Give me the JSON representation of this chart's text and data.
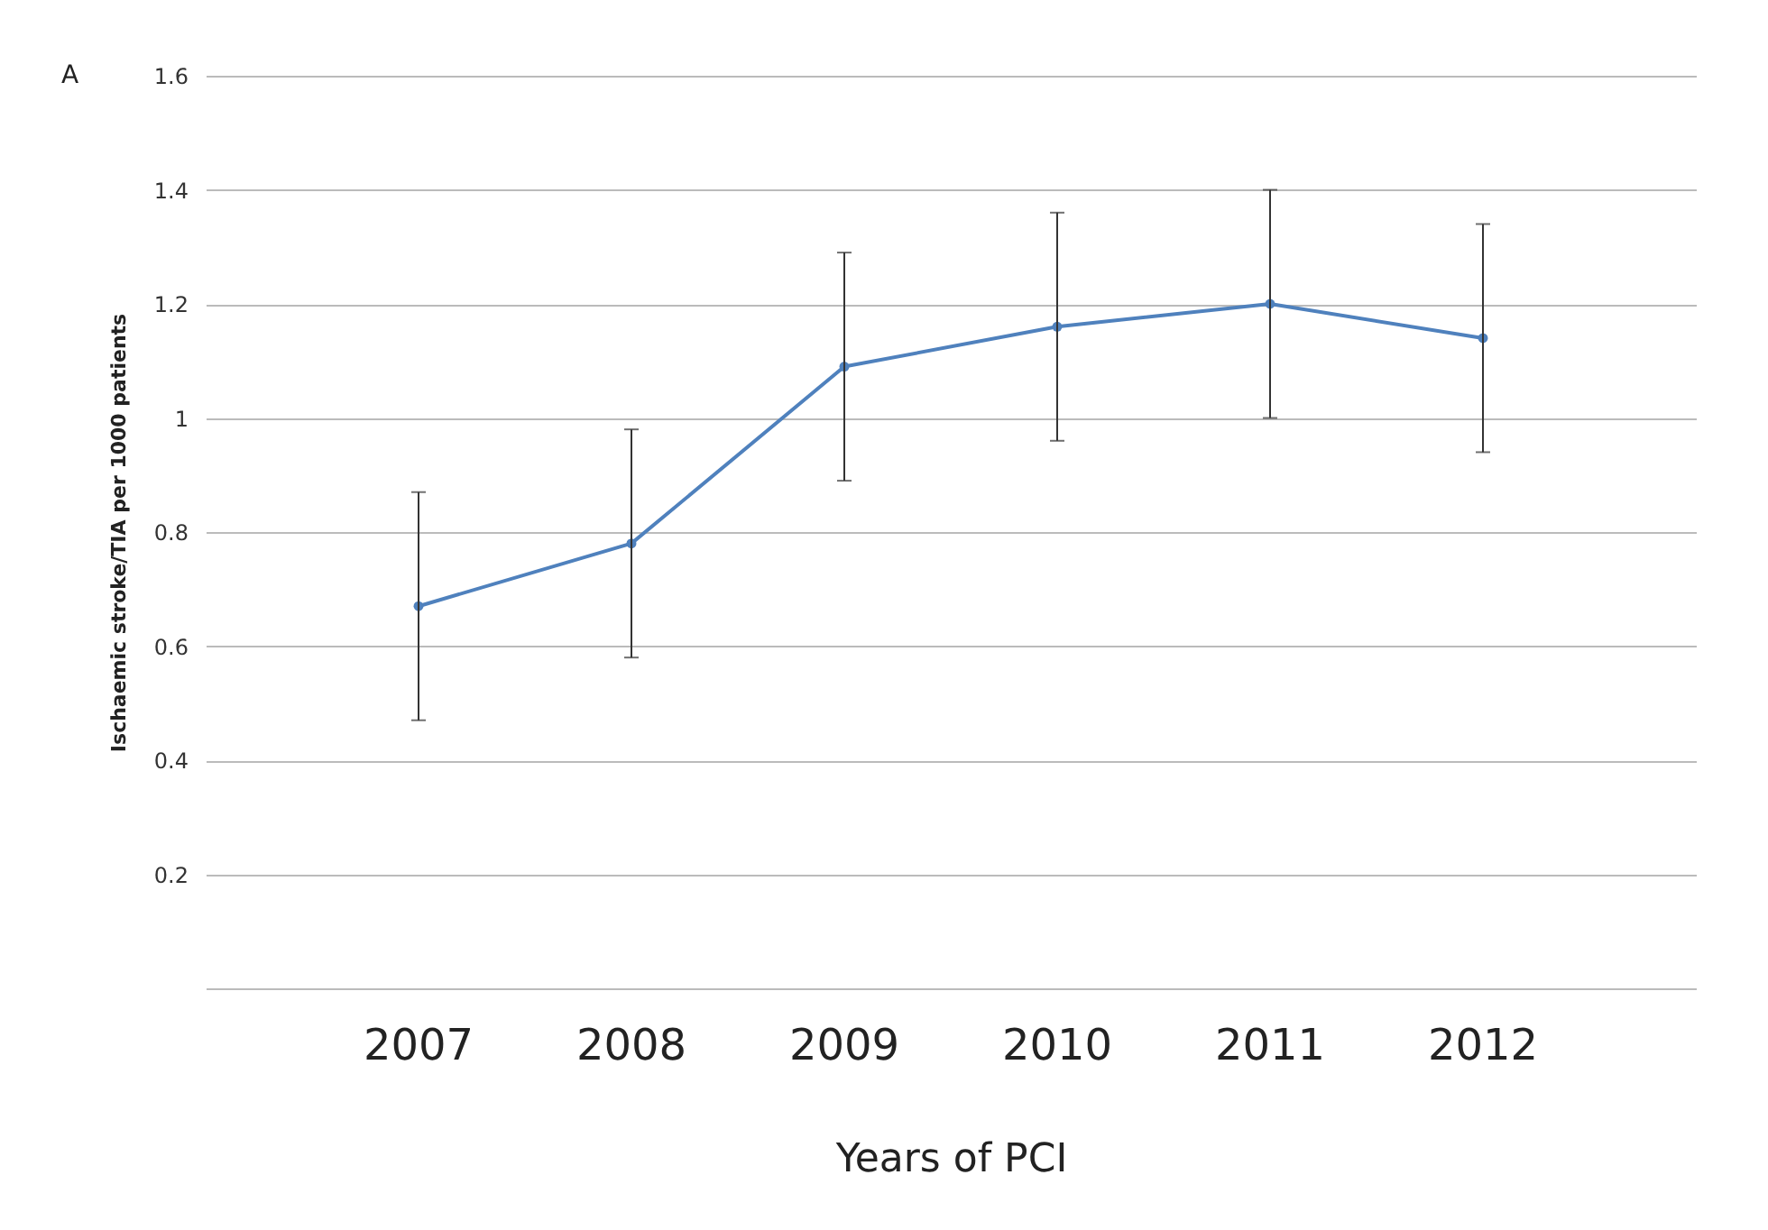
{
  "chart_data": {
    "type": "line",
    "xlabel": "Years of PCI",
    "ylabel": "Ischaemic stroke/TIA  per 1000 patients",
    "annotations": [
      "A"
    ],
    "categories": [
      "2007",
      "2008",
      "2009",
      "2010",
      "2011",
      "2012"
    ],
    "series": [
      {
        "color": "#4f81bd",
        "values": [
          0.67,
          0.78,
          1.09,
          1.16,
          1.2,
          1.14
        ],
        "errors": [
          0.2,
          0.2,
          0.2,
          0.2,
          0.2,
          0.2
        ]
      }
    ],
    "ylim": [
      0,
      1.6
    ],
    "yticks": [
      {
        "value": 0,
        "label": null
      },
      0.2,
      0.4,
      0.6,
      0.8,
      1,
      1.2,
      1.4,
      1.6
    ],
    "grid": "y",
    "marker": "circle",
    "legend": false
  }
}
